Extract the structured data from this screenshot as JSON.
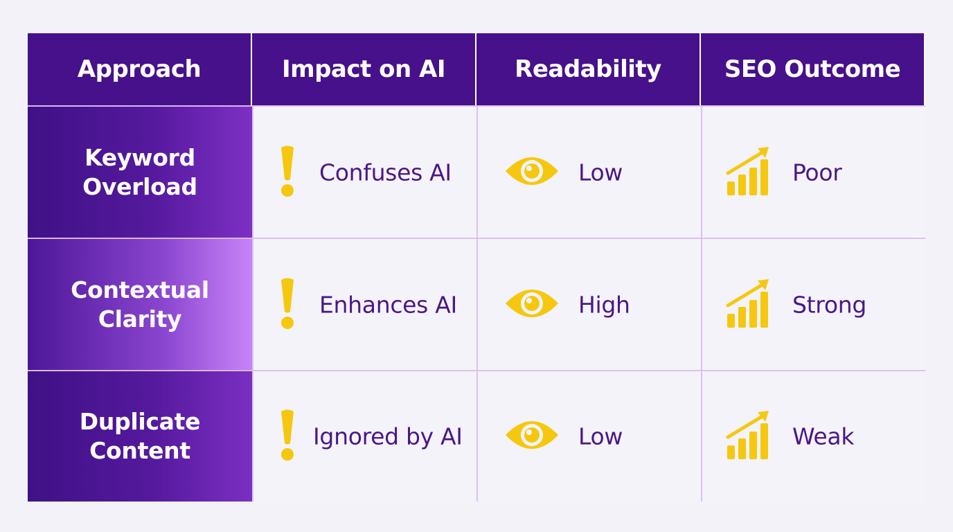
{
  "table": {
    "headers": [
      "Approach",
      "Impact on AI",
      "Readability",
      "SEO Outcome"
    ],
    "rows": [
      {
        "approach": "Keyword\nOverload",
        "impact": "Confuses AI",
        "readability": "Low",
        "seo": "Poor"
      },
      {
        "approach": "Contextual\nClarity",
        "impact": "Enhances AI",
        "readability": "High",
        "seo": "Strong"
      },
      {
        "approach": "Duplicate\nContent",
        "impact": "Ignored by AI",
        "readability": "Low",
        "seo": "Weak"
      }
    ]
  },
  "icons": {
    "impact": "exclamation-icon",
    "readability": "eye-icon",
    "seo": "growth-chart-icon"
  },
  "colors": {
    "header_bg": "#46118a",
    "accent_yellow": "#f5c80f",
    "text_purple": "#4a1786",
    "grid_line": "#dcc1ee"
  }
}
